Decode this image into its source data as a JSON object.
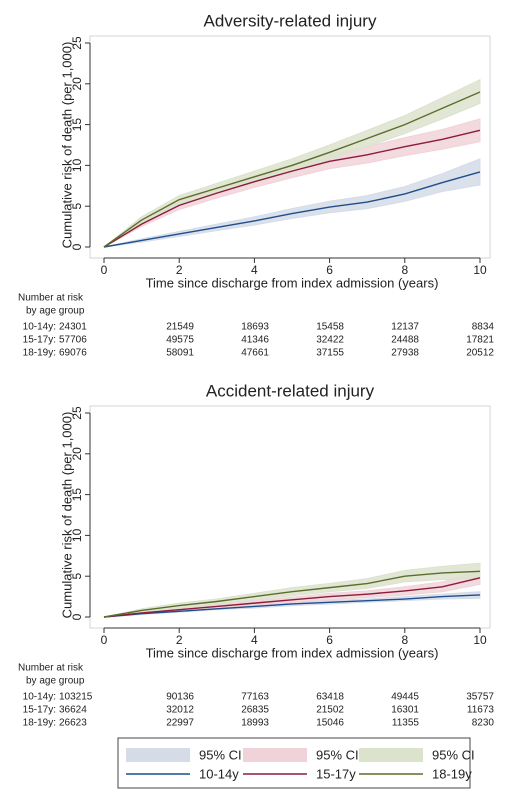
{
  "chart_data": [
    {
      "type": "line",
      "title": "Adversity-related injury",
      "xlabel": "Time since discharge from index admission (years)",
      "ylabel": "Cumulative risk of death (per 1,000)",
      "x": [
        0,
        1,
        2,
        3,
        4,
        5,
        6,
        7,
        8,
        9,
        10
      ],
      "xlim": [
        0,
        10
      ],
      "xticks": [
        0,
        2,
        4,
        6,
        8,
        10
      ],
      "ylim": [
        0,
        25
      ],
      "yticks": [
        0,
        5,
        10,
        15,
        20,
        25
      ],
      "grid": false,
      "legend": "bottom",
      "series": [
        {
          "name": "10-14y",
          "ci_name": "95% CI",
          "color": "#1f4e8c",
          "ci_color": "#d5dce8",
          "values": [
            0,
            0.8,
            1.6,
            2.4,
            3.2,
            4.1,
            4.9,
            5.5,
            6.5,
            7.9,
            9.2
          ],
          "lower": [
            0,
            0.6,
            1.3,
            2.0,
            2.7,
            3.5,
            4.2,
            4.7,
            5.6,
            6.8,
            7.6
          ],
          "upper": [
            0,
            1.0,
            1.9,
            2.8,
            3.7,
            4.7,
            5.6,
            6.3,
            7.4,
            9.0,
            10.8
          ]
        },
        {
          "name": "15-17y",
          "ci_name": "95% CI",
          "color": "#8b1c3c",
          "ci_color": "#f0d3d8",
          "values": [
            0,
            2.8,
            5.1,
            6.6,
            8.0,
            9.3,
            10.5,
            11.3,
            12.3,
            13.2,
            14.3
          ],
          "lower": [
            0,
            2.5,
            4.6,
            6.0,
            7.3,
            8.5,
            9.6,
            10.3,
            11.2,
            12.0,
            12.9
          ],
          "upper": [
            0,
            3.1,
            5.6,
            7.2,
            8.7,
            10.1,
            11.4,
            12.3,
            13.4,
            14.4,
            15.7
          ]
        },
        {
          "name": "18-19y",
          "ci_name": "95% CI",
          "color": "#5b6e2b",
          "ci_color": "#dce3cd",
          "values": [
            0,
            3.3,
            5.8,
            7.2,
            8.6,
            10.0,
            11.6,
            13.3,
            15.0,
            17.0,
            19.0
          ],
          "lower": [
            0,
            2.9,
            5.3,
            6.6,
            7.9,
            9.2,
            10.7,
            12.3,
            13.9,
            15.7,
            17.6
          ],
          "upper": [
            0,
            3.7,
            6.3,
            7.8,
            9.3,
            10.8,
            12.5,
            14.3,
            16.1,
            18.3,
            20.5
          ]
        }
      ],
      "risk_table": {
        "title_lines": [
          "Number at risk",
          "by age group"
        ],
        "rows": [
          {
            "label": "10-14y:",
            "values": [
              "24301",
              "21549",
              "18693",
              "15458",
              "12137",
              "8834"
            ]
          },
          {
            "label": "15-17y:",
            "values": [
              "57706",
              "49575",
              "41346",
              "32422",
              "24488",
              "17821"
            ]
          },
          {
            "label": "18-19y:",
            "values": [
              "69076",
              "58091",
              "47661",
              "37155",
              "27938",
              "20512"
            ]
          }
        ]
      }
    },
    {
      "type": "line",
      "title": "Accident-related injury",
      "xlabel": "Time since discharge from index admission (years)",
      "ylabel": "Cumulative risk of death (per 1,000)",
      "x": [
        0,
        1,
        2,
        3,
        4,
        5,
        6,
        7,
        8,
        9,
        10
      ],
      "xlim": [
        0,
        10
      ],
      "xticks": [
        0,
        2,
        4,
        6,
        8,
        10
      ],
      "ylim": [
        0,
        25
      ],
      "yticks": [
        0,
        5,
        10,
        15,
        20,
        25
      ],
      "grid": false,
      "series": [
        {
          "color": "#1f4e8c",
          "ci_color": "#d5dce8",
          "values": [
            0,
            0.4,
            0.7,
            1.0,
            1.3,
            1.6,
            1.8,
            2.0,
            2.2,
            2.5,
            2.7
          ],
          "lower": [
            0,
            0.3,
            0.6,
            0.9,
            1.1,
            1.4,
            1.6,
            1.8,
            2.0,
            2.2,
            2.3
          ],
          "upper": [
            0,
            0.5,
            0.8,
            1.1,
            1.5,
            1.8,
            2.0,
            2.2,
            2.5,
            2.8,
            3.1
          ]
        },
        {
          "color": "#8b1c3c",
          "ci_color": "#f0d3d8",
          "values": [
            0,
            0.5,
            0.9,
            1.3,
            1.7,
            2.1,
            2.5,
            2.8,
            3.2,
            3.7,
            4.8
          ],
          "lower": [
            0,
            0.4,
            0.7,
            1.1,
            1.4,
            1.8,
            2.1,
            2.4,
            2.7,
            3.1,
            4.0
          ],
          "upper": [
            0,
            0.6,
            1.1,
            1.5,
            2.0,
            2.4,
            2.9,
            3.2,
            3.7,
            4.3,
            5.6
          ]
        },
        {
          "color": "#5b6e2b",
          "ci_color": "#dce3cd",
          "values": [
            0,
            0.8,
            1.4,
            1.9,
            2.5,
            3.1,
            3.6,
            4.1,
            5.0,
            5.4,
            5.6
          ],
          "lower": [
            0,
            0.6,
            1.1,
            1.6,
            2.1,
            2.6,
            3.1,
            3.5,
            4.3,
            4.6,
            4.7
          ],
          "upper": [
            0,
            1.0,
            1.7,
            2.2,
            2.9,
            3.6,
            4.1,
            4.7,
            5.7,
            6.2,
            6.6
          ]
        }
      ],
      "risk_table": {
        "title_lines": [
          "Number at risk",
          "by age group"
        ],
        "rows": [
          {
            "label": "10-14y:",
            "values": [
              "103215",
              "90136",
              "77163",
              "63418",
              "49445",
              "35757"
            ]
          },
          {
            "label": "15-17y:",
            "values": [
              "36624",
              "32012",
              "26835",
              "21502",
              "16301",
              "11673"
            ]
          },
          {
            "label": "18-19y:",
            "values": [
              "26623",
              "22997",
              "18993",
              "15046",
              "11355",
              "8230"
            ]
          }
        ]
      }
    }
  ]
}
